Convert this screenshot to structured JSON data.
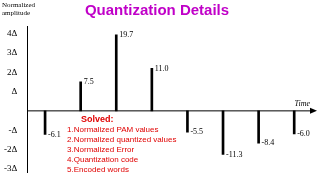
{
  "chart_data": {
    "type": "bar",
    "title": "Quantization Details",
    "y_label": "Normalized amplitude",
    "x_label": "Time",
    "categories": [
      null,
      null,
      null,
      null,
      null,
      null,
      null,
      null
    ],
    "values": [
      -6.1,
      7.5,
      19.7,
      11.0,
      -5.5,
      -11.3,
      -8.4,
      -6.0
    ],
    "value_labels": [
      "-6.1",
      "7.5",
      "19.7",
      "11.0",
      "-5.5",
      "-11.3",
      "-8.4",
      "-6.0"
    ],
    "color": "#000000",
    "ylim": [
      -16,
      22
    ],
    "yticks": [
      {
        "value": 20,
        "label": "4Δ"
      },
      {
        "value": 15,
        "label": "3Δ"
      },
      {
        "value": 10,
        "label": "2Δ"
      },
      {
        "value": 5,
        "label": "Δ"
      },
      {
        "value": -5,
        "label": "-Δ"
      },
      {
        "value": -10,
        "label": "-2Δ"
      },
      {
        "value": -15,
        "label": "-3Δ"
      }
    ],
    "grid": false,
    "data_labels": true,
    "tick_labels": "y",
    "annotation": {
      "title": "Solved:",
      "items": [
        "1.Normalized PAM values",
        "2.Normalized quantized values",
        "3.Normalized Error",
        "4.Quantization code",
        "5.Encoded words"
      ]
    }
  }
}
